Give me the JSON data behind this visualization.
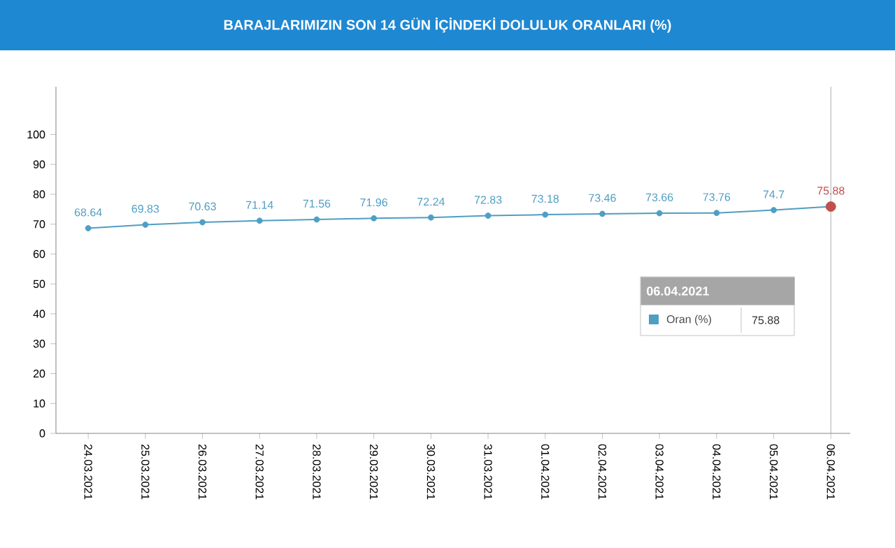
{
  "chart_data": {
    "type": "line",
    "title": "BARAJLARIMIZIN SON 14 GÜN İÇİNDEKİ DOLULUK ORANLARI (%)",
    "legend_title": "06.04.2021",
    "categories": [
      "24.03.2021",
      "25.03.2021",
      "26.03.2021",
      "27.03.2021",
      "28.03.2021",
      "29.03.2021",
      "30.03.2021",
      "31.03.2021",
      "01.04.2021",
      "02.04.2021",
      "03.04.2021",
      "04.04.2021",
      "05.04.2021",
      "06.04.2021"
    ],
    "series": [
      {
        "name": "Oran (%)",
        "color": "#4f9ec4",
        "values": [
          68.64,
          69.83,
          70.63,
          71.14,
          71.56,
          71.96,
          72.24,
          72.83,
          73.18,
          73.46,
          73.66,
          73.76,
          74.7,
          75.88
        ],
        "colors": [
          "#4f9ec4",
          "#4f9ec4",
          "#4f9ec4",
          "#4f9ec4",
          "#4f9ec4",
          "#4f9ec4",
          "#4f9ec4",
          "#4f9ec4",
          "#4f9ec4",
          "#4f9ec4",
          "#4f9ec4",
          "#4f9ec4",
          "#4f9ec4",
          "#c0504d"
        ]
      }
    ],
    "ylim": [
      0,
      116
    ],
    "yticks": [
      0,
      10,
      20,
      30,
      40,
      50,
      60,
      70,
      80,
      90,
      100
    ],
    "data_labels": true,
    "marker": "circle",
    "line_style": "solid",
    "legend": "right",
    "annotations": [
      "75.88"
    ],
    "ref_lines": [
      {
        "axis": "x",
        "value": "06.04.2021",
        "color": "#999999"
      }
    ]
  }
}
